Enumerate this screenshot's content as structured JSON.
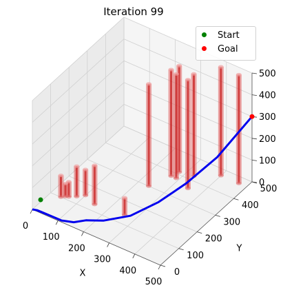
{
  "title": "Iteration 99",
  "legend": [
    {
      "label": "Start",
      "color": "#008000"
    },
    {
      "label": "Goal",
      "color": "#ff0000"
    }
  ],
  "chart_data": {
    "type": "3d-path",
    "title": "Iteration 99",
    "xlabel": "X",
    "ylabel": "Y",
    "zlabel": "",
    "xlim": [
      0,
      500
    ],
    "ylim": [
      0,
      500
    ],
    "zlim": [
      0,
      500
    ],
    "x_ticks": [
      "0",
      "100",
      "200",
      "300",
      "400",
      "500"
    ],
    "y_ticks": [
      "0",
      "100",
      "200",
      "300",
      "400",
      "500"
    ],
    "z_ticks": [
      "0",
      "100",
      "200",
      "300",
      "400",
      "500"
    ],
    "grid": true,
    "legend_position": "top-right",
    "start": {
      "x": 0,
      "y": 0,
      "z": 0,
      "color": "#008000"
    },
    "goal": {
      "x": 500,
      "y": 500,
      "z": 300,
      "color": "#ff0000"
    },
    "path": [
      [
        0,
        0,
        0
      ],
      [
        15,
        5,
        0
      ],
      [
        35,
        10,
        -5
      ],
      [
        60,
        15,
        -10
      ],
      [
        100,
        20,
        -15
      ],
      [
        140,
        30,
        -10
      ],
      [
        170,
        55,
        -5
      ],
      [
        220,
        80,
        0
      ],
      [
        290,
        130,
        20
      ],
      [
        350,
        200,
        60
      ],
      [
        400,
        280,
        110
      ],
      [
        450,
        380,
        180
      ],
      [
        500,
        500,
        300
      ]
    ],
    "obstacles": [
      {
        "x": 40,
        "y": 100,
        "height": 100
      },
      {
        "x": 50,
        "y": 110,
        "height": 60
      },
      {
        "x": 60,
        "y": 115,
        "height": 70
      },
      {
        "x": 80,
        "y": 130,
        "height": 140
      },
      {
        "x": 100,
        "y": 150,
        "height": 120
      },
      {
        "x": 150,
        "y": 130,
        "height": 180
      },
      {
        "x": 260,
        "y": 140,
        "height": 80
      },
      {
        "x": 240,
        "y": 300,
        "height": 470
      },
      {
        "x": 270,
        "y": 380,
        "height": 490
      },
      {
        "x": 290,
        "y": 380,
        "height": 480
      },
      {
        "x": 280,
        "y": 410,
        "height": 490
      },
      {
        "x": 350,
        "y": 360,
        "height": 500
      },
      {
        "x": 400,
        "y": 470,
        "height": 500
      },
      {
        "x": 470,
        "y": 470,
        "height": 500
      },
      {
        "x": 330,
        "y": 420,
        "height": 470
      }
    ]
  }
}
